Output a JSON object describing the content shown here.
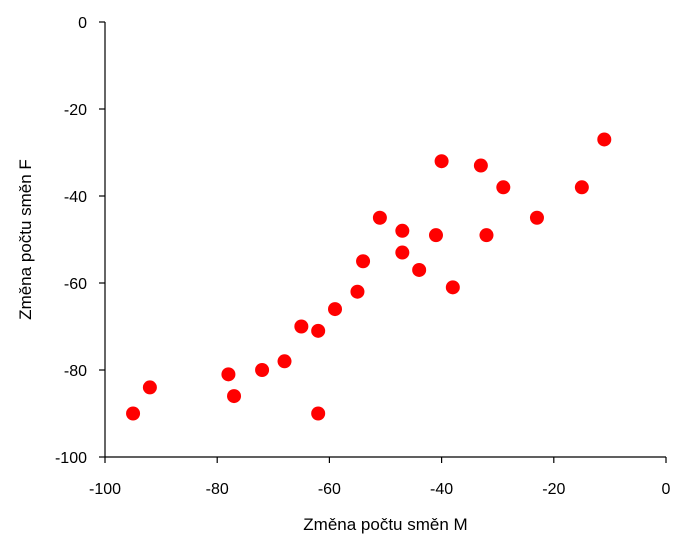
{
  "chart_data": {
    "type": "scatter",
    "title": "",
    "xlabel": "Změna počtu směn M",
    "ylabel": "Změna počtu směn F",
    "xlim": [
      -100,
      0
    ],
    "ylim": [
      -100,
      0
    ],
    "xticks": [
      -100,
      -80,
      -60,
      -40,
      -20,
      0
    ],
    "yticks": [
      0,
      -20,
      -40,
      -60,
      -80,
      -100
    ],
    "grid": false,
    "legend": "none",
    "marker_color": "#ff0000",
    "axis_color": "#000000",
    "series": [
      {
        "x": [
          -95,
          -92,
          -78,
          -77,
          -72,
          -68,
          -65,
          -62,
          -62,
          -59,
          -55,
          -54,
          -51,
          -47,
          -47,
          -44,
          -41,
          -40,
          -38,
          -33,
          -32,
          -29,
          -23,
          -15,
          -11
        ],
        "y": [
          -90,
          -84,
          -81,
          -86,
          -80,
          -78,
          -70,
          -71,
          -90,
          -66,
          -62,
          -55,
          -45,
          -48,
          -53,
          -57,
          -49,
          -32,
          -61,
          -33,
          -49,
          -38,
          -45,
          -38,
          -27
        ]
      }
    ]
  }
}
